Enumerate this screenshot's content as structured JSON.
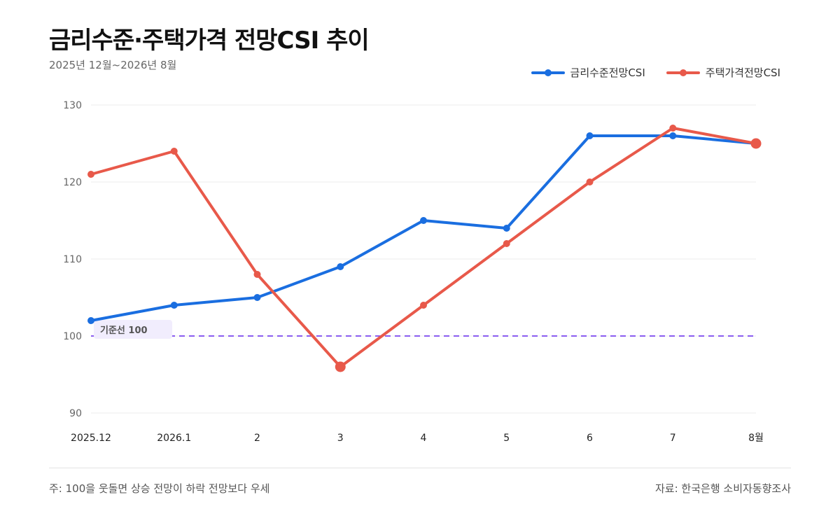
{
  "header": {
    "title": "금리수준·주택가격 전망CSI 추이",
    "subtitle": "2025년 12월~2026년 8월"
  },
  "footer": {
    "note": "주: 100을 웃돌면 상승 전망이 하락 전망보다 우세",
    "source": "자료: 한국은행 소비자동향조사"
  },
  "chart_data": {
    "type": "line",
    "title": "금리수준·주택가격 전망CSI 추이",
    "categories": [
      "2025.12",
      "2026.1",
      "2",
      "3",
      "4",
      "5",
      "6",
      "7",
      "8월"
    ],
    "series": [
      {
        "name": "금리수준전망CSI",
        "color": "#1a6ee0",
        "values": [
          102,
          104,
          105,
          109,
          115,
          114,
          126,
          126,
          125
        ]
      },
      {
        "name": "주택가격전망CSI",
        "color": "#e8594a",
        "values": [
          121,
          124,
          108,
          96,
          104,
          112,
          120,
          127,
          125
        ]
      }
    ],
    "ylim": [
      90,
      130
    ],
    "yticks": [
      90,
      100,
      110,
      120,
      130
    ],
    "grid": true,
    "legend_position": "top-right",
    "baseline": {
      "value": 100,
      "label": "기준선 100",
      "color": "#8a5cf0"
    },
    "highlight_points": [
      {
        "series": 1,
        "index": 3
      },
      {
        "series": 1,
        "index": 8
      }
    ]
  }
}
